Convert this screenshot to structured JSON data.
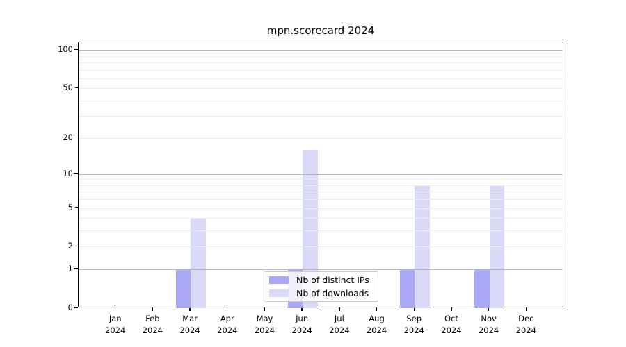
{
  "chart_data": {
    "type": "bar",
    "title": "mpn.scorecard 2024",
    "x_labels": [
      [
        "Jan",
        "2024"
      ],
      [
        "Feb",
        "2024"
      ],
      [
        "Mar",
        "2024"
      ],
      [
        "Apr",
        "2024"
      ],
      [
        "May",
        "2024"
      ],
      [
        "Jun",
        "2024"
      ],
      [
        "Jul",
        "2024"
      ],
      [
        "Aug",
        "2024"
      ],
      [
        "Sep",
        "2024"
      ],
      [
        "Oct",
        "2024"
      ],
      [
        "Nov",
        "2024"
      ],
      [
        "Dec",
        "2024"
      ]
    ],
    "series": [
      {
        "name": "Nb of distinct IPs",
        "color": "#a8a8f6",
        "values": [
          0,
          0,
          1,
          0,
          0,
          1,
          0,
          0,
          1,
          0,
          1,
          0
        ]
      },
      {
        "name": "Nb of downloads",
        "color": "#dadaf8",
        "values": [
          0,
          0,
          4,
          0,
          0,
          16,
          0,
          0,
          8,
          0,
          8,
          0
        ]
      }
    ],
    "y_axis": {
      "scale": "log1p",
      "min": 0,
      "max": 115,
      "labeled_ticks": [
        0,
        1,
        2,
        5,
        10,
        20,
        50,
        100
      ],
      "major_gridlines": [
        1,
        10,
        100
      ],
      "minor_gridlines": [
        2,
        3,
        4,
        5,
        6,
        7,
        8,
        9,
        20,
        30,
        40,
        50,
        60,
        70,
        80,
        90
      ]
    },
    "legend": {
      "position": "lower center"
    },
    "grid": "on",
    "colors": {
      "major_grid": "#b9b9b9",
      "minor_grid": "#ececec",
      "axis": "#000000",
      "background": "#ffffff"
    }
  }
}
